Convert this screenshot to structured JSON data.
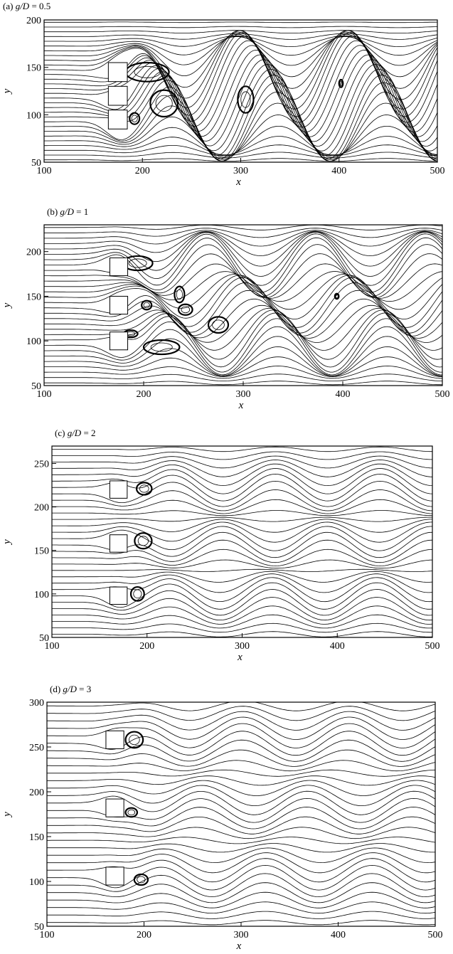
{
  "chart_data": [
    {
      "type": "streamline",
      "panel_label": "(a)",
      "title_var": "g/D",
      "title_eq": "= 0.5",
      "xlabel": "x",
      "ylabel": "y",
      "xlim": [
        100,
        500
      ],
      "ylim": [
        50,
        200
      ],
      "xticks": [
        100,
        200,
        300,
        400,
        500
      ],
      "yticks": [
        50,
        100,
        150,
        200
      ],
      "cylinders": [
        [
          175,
          145
        ],
        [
          175,
          120
        ],
        [
          175,
          95
        ]
      ],
      "wake_amplitude": 38,
      "vortices": [
        {
          "x": 205,
          "y": 145,
          "rx": 22,
          "ry": 10
        },
        {
          "x": 222,
          "y": 112,
          "rx": 14,
          "ry": 14
        },
        {
          "x": 305,
          "y": 116,
          "rx": 8,
          "ry": 14
        },
        {
          "x": 402,
          "y": 133,
          "rx": 2,
          "ry": 4
        },
        {
          "x": 192,
          "y": 96,
          "rx": 5,
          "ry": 6
        }
      ]
    },
    {
      "type": "streamline",
      "panel_label": "(b)",
      "title_var": "g/D",
      "title_eq": "= 1",
      "xlabel": "x",
      "ylabel": "y",
      "xlim": [
        100,
        500
      ],
      "ylim": [
        50,
        230
      ],
      "xticks": [
        100,
        200,
        300,
        400,
        500
      ],
      "yticks": [
        50,
        100,
        150,
        200
      ],
      "cylinders": [
        [
          175,
          183
        ],
        [
          175,
          140
        ],
        [
          175,
          100
        ]
      ],
      "wake_amplitude": 32,
      "vortices": [
        {
          "x": 194,
          "y": 187,
          "rx": 15,
          "ry": 8
        },
        {
          "x": 203,
          "y": 140,
          "rx": 5,
          "ry": 5
        },
        {
          "x": 236,
          "y": 152,
          "rx": 5,
          "ry": 9
        },
        {
          "x": 242,
          "y": 135,
          "rx": 7,
          "ry": 6
        },
        {
          "x": 275,
          "y": 118,
          "rx": 10,
          "ry": 9
        },
        {
          "x": 218,
          "y": 93,
          "rx": 18,
          "ry": 8
        },
        {
          "x": 187,
          "y": 108,
          "rx": 7,
          "ry": 4
        },
        {
          "x": 394,
          "y": 150,
          "rx": 2,
          "ry": 3
        }
      ]
    },
    {
      "type": "streamline",
      "panel_label": "(c)",
      "title_var": "g/D",
      "title_eq": "= 2",
      "xlabel": "x",
      "ylabel": "y",
      "xlim": [
        100,
        500
      ],
      "ylim": [
        50,
        270
      ],
      "xticks": [
        100,
        200,
        300,
        400,
        500
      ],
      "yticks": [
        50,
        100,
        150,
        200,
        250
      ],
      "cylinders": [
        [
          170,
          220
        ],
        [
          170,
          158
        ],
        [
          170,
          98
        ]
      ],
      "wake_amplitude": 16,
      "vortices": [
        {
          "x": 197,
          "y": 221,
          "rx": 8,
          "ry": 7
        },
        {
          "x": 196,
          "y": 161,
          "rx": 9,
          "ry": 9
        },
        {
          "x": 190,
          "y": 100,
          "rx": 7,
          "ry": 8
        }
      ]
    },
    {
      "type": "streamline",
      "panel_label": "(d)",
      "title_var": "g/D",
      "title_eq": "= 3",
      "xlabel": "x",
      "ylabel": "y",
      "xlim": [
        100,
        500
      ],
      "ylim": [
        50,
        300
      ],
      "xticks": [
        100,
        200,
        300,
        400,
        500
      ],
      "yticks": [
        50,
        100,
        150,
        200,
        250,
        300
      ],
      "cylinders": [
        [
          170,
          258
        ],
        [
          170,
          182
        ],
        [
          170,
          106
        ]
      ],
      "wake_amplitude": 14,
      "vortices": [
        {
          "x": 190,
          "y": 258,
          "rx": 9,
          "ry": 9
        },
        {
          "x": 187,
          "y": 177,
          "rx": 6,
          "ry": 5
        },
        {
          "x": 197,
          "y": 102,
          "rx": 7,
          "ry": 6
        }
      ]
    }
  ]
}
